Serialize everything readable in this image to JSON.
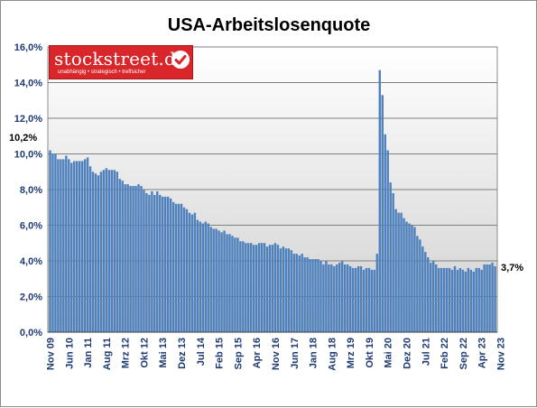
{
  "logo": {
    "name": "stockstreet.de",
    "tagline": "unabhängig • strategisch • treffsicher",
    "brand_color": "#d9262b"
  },
  "colors": {
    "bar": "#4f81bd",
    "bar_stroke": "#3a6aa3",
    "plot_gradient_top": "#ffffff",
    "plot_gradient_bottom": "#d0d0d0",
    "grid": "#7f7f7f",
    "tick_label": "#1f3b73"
  },
  "annotations": {
    "first_value": "10,2%",
    "last_value": "3,7%"
  },
  "chart_data": {
    "type": "bar",
    "title": "USA-Arbeitslosenquote",
    "xlabel": "",
    "ylabel": "",
    "unit": "%",
    "ylim": [
      0,
      16
    ],
    "yticks": [
      "0,0%",
      "2,0%",
      "4,0%",
      "6,0%",
      "8,0%",
      "10,0%",
      "12,0%",
      "14,0%",
      "16,0%"
    ],
    "grid": "horizontal",
    "legend": "none",
    "start_month": "Nov 09",
    "end_month": "Nov 23",
    "xtick_labels": [
      "Nov 09",
      "Jun 10",
      "Jan 11",
      "Aug 11",
      "Mrz 12",
      "Okt 12",
      "Mai 13",
      "Dez 13",
      "Jul 14",
      "Feb 15",
      "Sep 15",
      "Apr 16",
      "Nov 16",
      "Jun 17",
      "Jan 18",
      "Aug 18",
      "Mrz 19",
      "Okt 19",
      "Mai 20",
      "Dez 20",
      "Jul 21",
      "Feb 22",
      "Sep 22",
      "Apr 23",
      "Nov 23"
    ],
    "values": [
      10.2,
      10.0,
      10.0,
      9.7,
      9.7,
      9.7,
      9.9,
      9.7,
      9.5,
      9.6,
      9.6,
      9.6,
      9.6,
      9.7,
      9.8,
      9.3,
      9.0,
      8.9,
      8.8,
      9.0,
      9.1,
      9.2,
      9.1,
      9.1,
      9.1,
      9.0,
      8.6,
      8.5,
      8.3,
      8.3,
      8.2,
      8.2,
      8.2,
      8.3,
      8.2,
      8.0,
      7.8,
      7.7,
      7.9,
      7.7,
      7.9,
      7.7,
      7.6,
      7.6,
      7.6,
      7.5,
      7.3,
      7.2,
      7.2,
      7.2,
      7.0,
      6.9,
      6.7,
      6.6,
      6.7,
      6.3,
      6.2,
      6.1,
      6.2,
      6.1,
      5.9,
      5.8,
      5.8,
      5.7,
      5.6,
      5.7,
      5.5,
      5.5,
      5.4,
      5.3,
      5.3,
      5.1,
      5.1,
      5.0,
      5.0,
      5.0,
      4.9,
      4.9,
      5.0,
      5.0,
      5.0,
      4.8,
      4.9,
      4.9,
      5.0,
      4.9,
      4.7,
      4.8,
      4.7,
      4.7,
      4.6,
      4.4,
      4.4,
      4.3,
      4.4,
      4.2,
      4.2,
      4.1,
      4.1,
      4.1,
      4.1,
      4.0,
      3.8,
      4.0,
      3.8,
      3.8,
      3.7,
      3.8,
      3.9,
      4.0,
      3.8,
      3.8,
      3.7,
      3.6,
      3.6,
      3.7,
      3.7,
      3.5,
      3.6,
      3.6,
      3.5,
      3.5,
      4.4,
      14.7,
      13.3,
      11.1,
      10.2,
      8.4,
      7.8,
      6.9,
      6.7,
      6.7,
      6.4,
      6.2,
      6.1,
      6.0,
      5.9,
      5.4,
      5.2,
      4.8,
      4.5,
      4.2,
      3.9,
      4.0,
      3.8,
      3.6,
      3.6,
      3.6,
      3.6,
      3.6,
      3.5,
      3.7,
      3.5,
      3.6,
      3.5,
      3.4,
      3.6,
      3.5,
      3.4,
      3.6,
      3.6,
      3.5,
      3.8,
      3.8,
      3.8,
      3.9,
      3.7
    ]
  }
}
